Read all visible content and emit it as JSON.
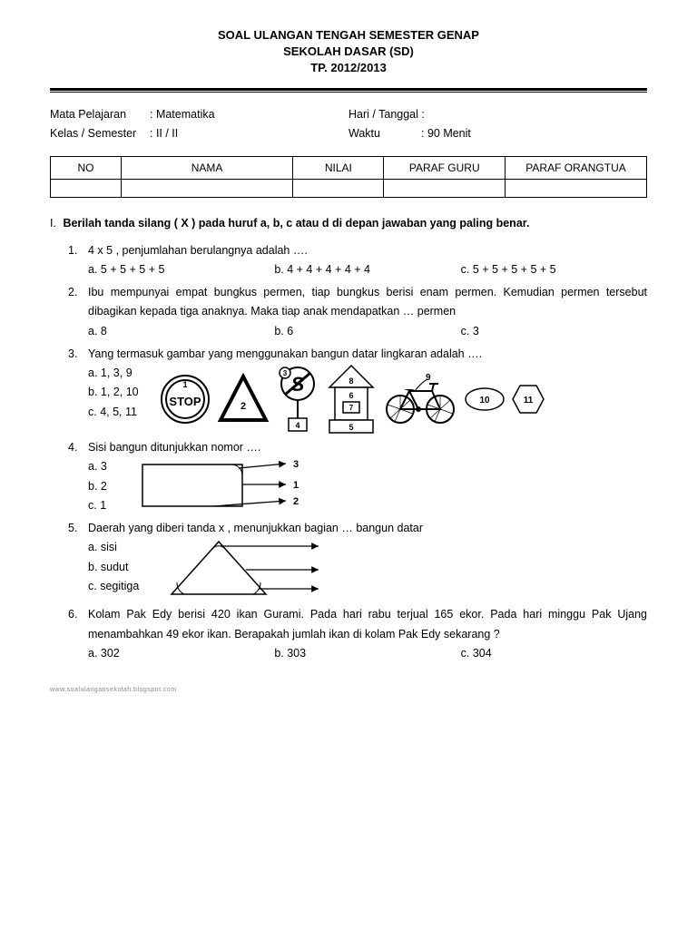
{
  "header": {
    "line1": "SOAL ULANGAN TENGAH SEMESTER GENAP",
    "line2": "SEKOLAH DASAR (SD)",
    "line3": "TP. 2012/2013"
  },
  "meta": {
    "subject_label": "Mata Pelajaran",
    "subject_value": ": Matematika",
    "class_label": "Kelas / Semester",
    "class_value": ": II / II",
    "date_label": "Hari / Tanggal :",
    "time_label": "Waktu",
    "time_value": ": 90 Menit"
  },
  "table": {
    "cols": [
      "NO",
      "NAMA",
      "NILAI",
      "PARAF GURU",
      "PARAF ORANGTUA"
    ],
    "widths": [
      70,
      170,
      90,
      120,
      140
    ]
  },
  "section": {
    "num": "I.",
    "title": "Berilah tanda silang ( X ) pada huruf a, b, c atau d di depan jawaban yang paling benar."
  },
  "q1": {
    "num": "1.",
    "text": "4 x 5 , penjumlahan berulangnya adalah ….",
    "a": "a. 5 + 5 + 5 + 5",
    "b": "b. 4 + 4 + 4 + 4 + 4",
    "c": "c. 5 + 5 + 5 + 5 + 5"
  },
  "q2": {
    "num": "2.",
    "text": "Ibu mempunyai empat bungkus permen, tiap bungkus berisi enam permen. Kemudian permen tersebut dibagikan kepada tiga anaknya. Maka tiap anak mendapatkan … permen",
    "a": "a. 8",
    "b": "b. 6",
    "c": "c. 3"
  },
  "q3": {
    "num": "3.",
    "text": "Yang termasuk gambar yang menggunakan bangun datar lingkaran adalah ….",
    "a": "a. 1, 3, 9",
    "b": "b. 1, 2, 10",
    "c": "c. 4, 5, 11",
    "labels": {
      "stop": "STOP",
      "n1": "1",
      "n2": "2",
      "n3": "3",
      "n4": "4",
      "n5": "5",
      "n6": "6",
      "n7": "7",
      "n8": "8",
      "n9": "9",
      "n10": "10",
      "n11": "11"
    }
  },
  "q4": {
    "num": "4.",
    "text": "Sisi bangun ditunjukkan nomor ….",
    "a": "a. 3",
    "b": "b. 2",
    "c": "c. 1",
    "labels": {
      "n1": "1",
      "n2": "2",
      "n3": "3"
    }
  },
  "q5": {
    "num": "5.",
    "text": "Daerah yang diberi tanda  x , menunjukkan bagian … bangun datar",
    "a": "a. sisi",
    "b": "b. sudut",
    "c": "c. segitiga"
  },
  "q6": {
    "num": "6.",
    "text": "Kolam Pak Edy berisi 420 ikan Gurami. Pada hari rabu terjual 165 ekor. Pada hari minggu Pak Ujang menambahkan 49 ekor ikan. Berapakah jumlah ikan di kolam Pak Edy sekarang ?",
    "a": "a. 302",
    "b": "b. 303",
    "c": "c. 304"
  },
  "footer": "www.soalulangansekolah.blogspot.com",
  "style": {
    "stroke": "#000",
    "fill_white": "#fff",
    "fill_dark": "#2a2a2a"
  }
}
